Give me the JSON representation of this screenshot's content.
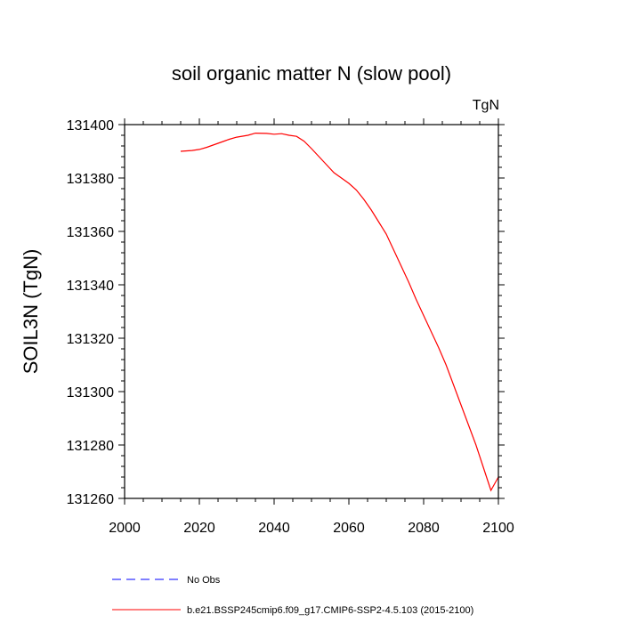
{
  "chart_data": {
    "type": "line",
    "title": "soil organic matter N (slow pool)",
    "units_label": "TgN",
    "xlabel": "",
    "ylabel": "SOIL3N  (TgN)",
    "xlim": [
      2000,
      2100
    ],
    "ylim": [
      131260,
      131400
    ],
    "xticks": [
      2000,
      2020,
      2040,
      2060,
      2080,
      2100
    ],
    "yticks": [
      131260,
      131280,
      131300,
      131320,
      131340,
      131360,
      131380,
      131400
    ],
    "xtick_labels": [
      "2000",
      "2020",
      "2040",
      "2060",
      "2080",
      "2100"
    ],
    "ytick_labels": [
      "131260",
      "131280",
      "131300",
      "131320",
      "131340",
      "131360",
      "131380",
      "131400"
    ],
    "series": [
      {
        "name": "b.e21.BSSP245cmip6.f09_g17.CMIP6-SSP2-4.5.103 (2015-2100)",
        "color": "#ff0000",
        "x": [
          2015,
          2018,
          2020,
          2022,
          2025,
          2028,
          2030,
          2033,
          2035,
          2038,
          2040,
          2042,
          2044,
          2046,
          2048,
          2050,
          2052,
          2054,
          2056,
          2058,
          2060,
          2062,
          2064,
          2066,
          2068,
          2070,
          2072,
          2074,
          2076,
          2078,
          2080,
          2082,
          2084,
          2086,
          2088,
          2090,
          2092,
          2094,
          2096,
          2098,
          2100
        ],
        "y": [
          131390,
          131390.3,
          131390.7,
          131391.5,
          131393,
          131394.5,
          131395.3,
          131396,
          131396.8,
          131396.7,
          131396.4,
          131396.6,
          131396,
          131395.6,
          131393.8,
          131391,
          131388,
          131385,
          131382,
          131380,
          131378,
          131375.5,
          131372,
          131368,
          131363.5,
          131359,
          131353,
          131347,
          131341,
          131334.5,
          131328.5,
          131322.5,
          131316.5,
          131310,
          131302.5,
          131295,
          131287.5,
          131280,
          131271.5,
          131263,
          131268
        ]
      }
    ]
  },
  "legend": {
    "items": [
      {
        "label": "No Obs",
        "color": "#0000ff",
        "style": "dashed"
      },
      {
        "label": "b.e21.BSSP245cmip6.f09_g17.CMIP6-SSP2-4.5.103 (2015-2100)",
        "color": "#ff0000",
        "style": "solid"
      }
    ]
  }
}
